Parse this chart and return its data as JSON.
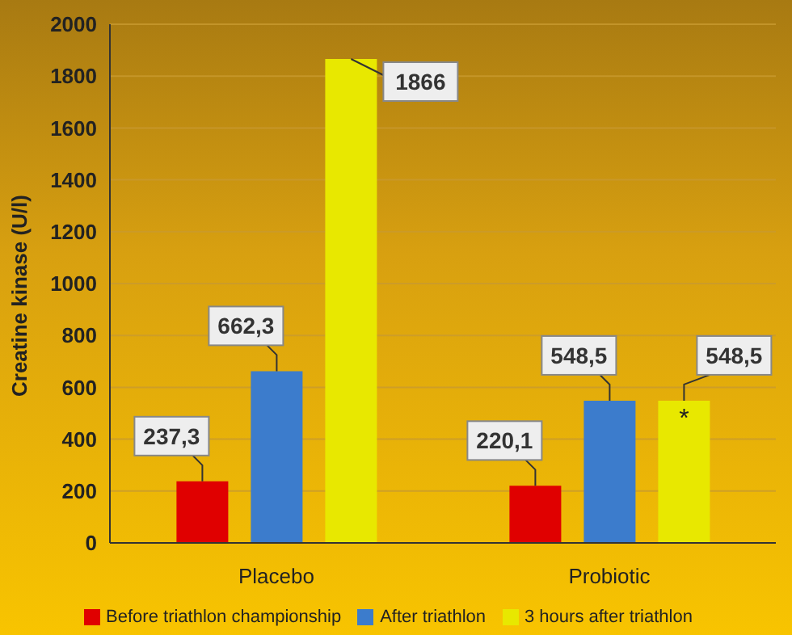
{
  "chart_data": {
    "type": "bar",
    "ylabel": "Creatine kinase (U/l)",
    "categories": [
      "Placebo",
      "Probiotic"
    ],
    "series": [
      {
        "name": "Before triathlon championship",
        "color": "#e00000",
        "values": [
          237.3,
          220.1
        ],
        "value_labels": [
          "237,3",
          "220,1"
        ]
      },
      {
        "name": "After triathlon",
        "color": "#3c7ccc",
        "values": [
          662.3,
          548.5
        ],
        "value_labels": [
          "662,3",
          "548,5"
        ]
      },
      {
        "name": "3 hours after triathlon",
        "color": "#e8e800",
        "values": [
          1866,
          548.5
        ],
        "value_labels": [
          "1866",
          "548,5"
        ]
      }
    ],
    "ylim": [
      0,
      2000
    ],
    "yticks": [
      0,
      200,
      400,
      600,
      800,
      1000,
      1200,
      1400,
      1600,
      1800,
      2000
    ],
    "grid": "y",
    "legend": "bottom",
    "annotations": [
      {
        "text": "*",
        "x": "Probiotic",
        "y": 548.5
      }
    ]
  }
}
